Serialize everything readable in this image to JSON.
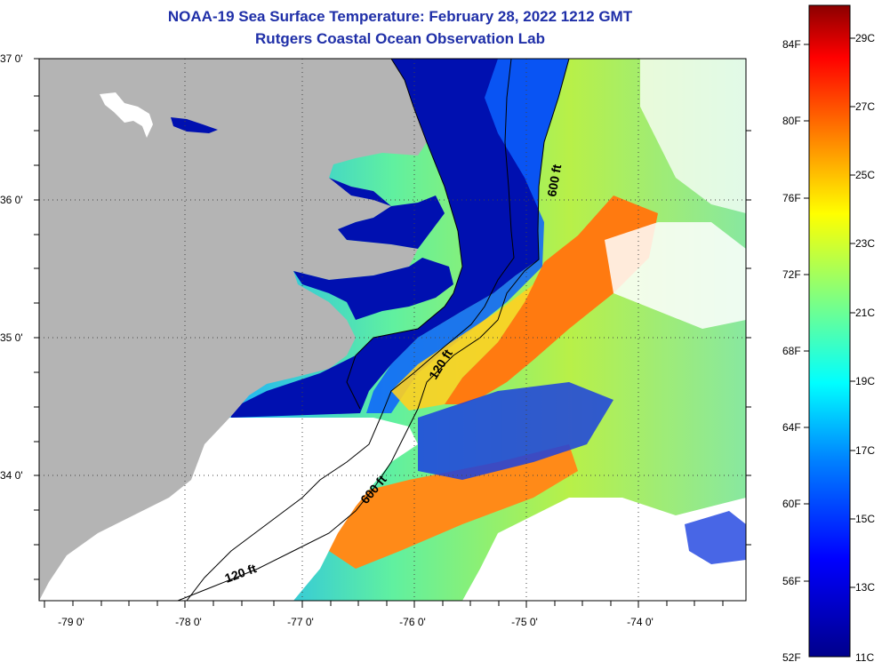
{
  "title": {
    "line1": "NOAA-19 Sea Surface Temperature:  February 28, 2022 1212 GMT",
    "line2": "Rutgers Coastal Ocean Observation Lab"
  },
  "latitude_labels": [
    "37 0'",
    "36 0'",
    "35 0'",
    "34 0'"
  ],
  "longitude_labels": [
    "-79 0'",
    "-78 0'",
    "-77 0'",
    "-76 0'",
    "-75 0'",
    "-74 0'"
  ],
  "contour_labels": [
    "600 ft",
    "120 ft",
    "600 ft",
    "120 ft"
  ],
  "colorbar": {
    "fahrenheit_labels": [
      "84F",
      "80F",
      "76F",
      "72F",
      "68F",
      "64F",
      "60F",
      "56F",
      "52F"
    ],
    "celsius_labels": [
      "29C",
      "27C",
      "25C",
      "23C",
      "21C",
      "19C",
      "17C",
      "15C",
      "13C",
      "11C"
    ],
    "colors": [
      "#8b0000",
      "#ff0000",
      "#ff8000",
      "#ffff00",
      "#80ff80",
      "#00ffff",
      "#0080ff",
      "#0000ff",
      "#00008b"
    ]
  },
  "colors": {
    "land": "#b4b4b4",
    "coastal_water": "#0010b0",
    "cloud": "#ffffff",
    "title_text": "#1f2fa8"
  }
}
